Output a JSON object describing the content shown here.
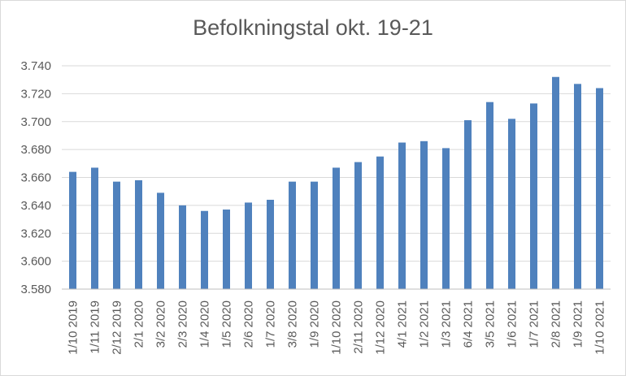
{
  "chart_data": {
    "type": "bar",
    "title": "Befolkningstal okt. 19-21",
    "xlabel": "",
    "ylabel": "",
    "ylim": [
      3580,
      3740
    ],
    "y_ticks": [
      3580,
      3600,
      3620,
      3640,
      3660,
      3680,
      3700,
      3720,
      3740
    ],
    "y_tick_labels": [
      "3.580",
      "3.600",
      "3.620",
      "3.640",
      "3.660",
      "3.680",
      "3.700",
      "3.720",
      "3.740"
    ],
    "grid": true,
    "legend": "none",
    "bar_color": "#4f81bd",
    "categories": [
      "1/10 2019",
      "1/11 2019",
      "2/12 2019",
      "2/1 2020",
      "3/2 2020",
      "2/3 2020",
      "1/4 2020",
      "1/5 2020",
      "2/6 2020",
      "1/7 2020",
      "3/8 2020",
      "1/9 2020",
      "1/10 2020",
      "2/11 2020",
      "1/12 2020",
      "4/1 2021",
      "1/2 2021",
      "1/3 2021",
      "6/4 2021",
      "3/5 2021",
      "1/6 2021",
      "1/7 2021",
      "2/8 2021",
      "1/9 2021",
      "1/10 2021"
    ],
    "values": [
      3664,
      3667,
      3657,
      3658,
      3649,
      3640,
      3636,
      3637,
      3642,
      3644,
      3657,
      3657,
      3667,
      3671,
      3675,
      3685,
      3686,
      3681,
      3701,
      3714,
      3702,
      3713,
      3732,
      3727,
      3724
    ]
  }
}
